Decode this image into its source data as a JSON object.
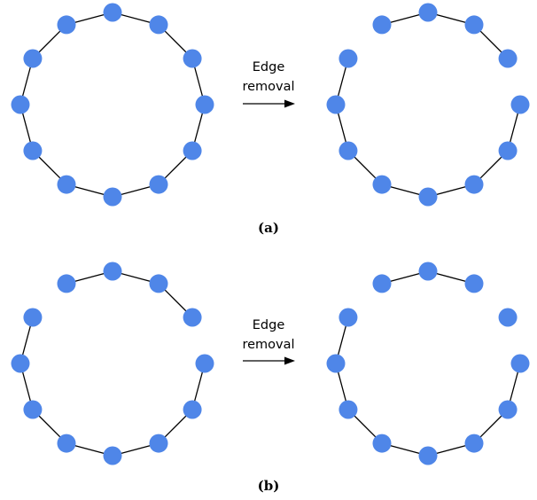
{
  "colors": {
    "node": "#4f86e8",
    "edge": "#000000",
    "background": "#ffffff"
  },
  "panels": [
    {
      "caption": "(a)",
      "arrow_label": [
        "Edge",
        "removal"
      ],
      "left_graph": {
        "node_count": 12,
        "edges": [
          [
            0,
            1
          ],
          [
            1,
            2
          ],
          [
            2,
            3
          ],
          [
            3,
            4
          ],
          [
            4,
            5
          ],
          [
            5,
            6
          ],
          [
            6,
            7
          ],
          [
            7,
            8
          ],
          [
            8,
            9
          ],
          [
            9,
            10
          ],
          [
            10,
            11
          ],
          [
            11,
            0
          ]
        ]
      },
      "right_graph": {
        "node_count": 12,
        "edges": [
          [
            0,
            1
          ],
          [
            1,
            2
          ],
          [
            3,
            4
          ],
          [
            4,
            5
          ],
          [
            5,
            6
          ],
          [
            6,
            7
          ],
          [
            7,
            8
          ],
          [
            8,
            9
          ],
          [
            9,
            10
          ],
          [
            11,
            0
          ]
        ]
      }
    },
    {
      "caption": "(b)",
      "arrow_label": [
        "Edge",
        "removal"
      ],
      "left_graph": {
        "node_count": 12,
        "edges": [
          [
            0,
            1
          ],
          [
            1,
            2
          ],
          [
            3,
            4
          ],
          [
            4,
            5
          ],
          [
            5,
            6
          ],
          [
            6,
            7
          ],
          [
            7,
            8
          ],
          [
            8,
            9
          ],
          [
            9,
            10
          ],
          [
            11,
            0
          ]
        ]
      },
      "right_graph": {
        "node_count": 12,
        "edges": [
          [
            0,
            1
          ],
          [
            3,
            4
          ],
          [
            4,
            5
          ],
          [
            5,
            6
          ],
          [
            6,
            7
          ],
          [
            7,
            8
          ],
          [
            8,
            9
          ],
          [
            9,
            10
          ],
          [
            11,
            0
          ]
        ]
      }
    }
  ]
}
